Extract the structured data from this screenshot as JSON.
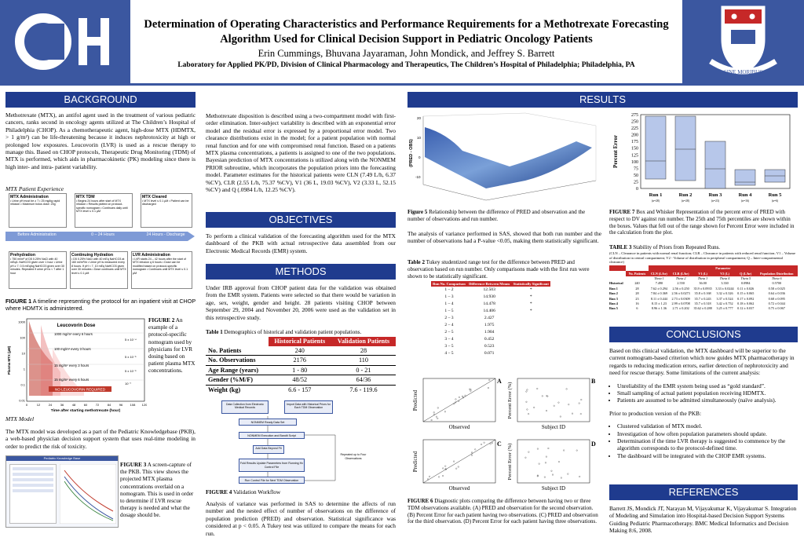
{
  "header": {
    "title_line1": "Determination of Operating Characteristics and Performance Requirements for a Methotrexate Forecasting",
    "title_line2": "Algorithm Used for Clinical Decision Support in Pediatric Oncology Patients",
    "authors": "Erin Cummings, Bhuvana Jayaraman, John Mondick, and Jeffrey S. Barrett",
    "affiliation": "Laboratory for Applied PK/PD, Division of Clinical Pharmacology and Therapeutics, The Children’s Hospital of Philadelphia; Philadelphia, PA",
    "seal_text": "SINE MORIBUS"
  },
  "sections": {
    "background": "BACKGROUND",
    "objectives": "OBJECTIVES",
    "methods": "METHODS",
    "results": "RESULTS",
    "conclusions": "CONCLUSIONS",
    "references": "REFERENCES"
  },
  "background": {
    "para1": "Methotrexate (MTX), an antifol agent used in the treatment of various pediatric cancers, ranks second in oncology agents utilized at The Children’s Hospital of Philadelphia (CHOP). As a chemotherapeutic agent, high-dose MTX (HDMTX, > 1 g/m²) can be life-threatening because it induces nephrotoxicity at high or prolonged low exposures. Leucovorin (LVR) is used as a rescue therapy to manage this. Based on CHOP protocols, Therapeutic Drug Monitoring (TDM) of MTX is performed, which aids in pharmacokinetic (PK) modeling since there is high inter- and intra- patient variability.",
    "mtx_patient_experience": "MTX Patient Experience",
    "timeline": {
      "box1_title": "MTX Administration",
      "box1_items": "• Urine pH must be ≥ 7 • 25 mg/kg rapid infusion • Maximum bolus dose: 20g",
      "box2_title": "MTX TDM",
      "box2_items": "• Begins 24 hours after start of MTX infusion • Results plotted on protocol-specific nomogram • Continues daily until MTX level ≤ 0.1 μM",
      "box3_title": "MTX Cleared",
      "box3_items": "• MTX level ≤ 0.1 μM • Patient can be discharged",
      "arrow1": "Before Administration",
      "arrow2": "0 – 24 Hours",
      "arrow3": "24 Hours - Discharge",
      "box4_title": "Prehydration",
      "box4_items": "• 750 ml/m² of D5 0.25% NaCl with 40 mEq/L NaHCO3 given over 1 hour • Urine pH ≥ 7, 0.5 mEq/kg NaHCO3 given over 30 minutes. Repeated if urine pH is < 7 after 1 hour",
      "box5_title": "Continuing Hydration",
      "box5_items": "• D5 0.25% NaCl with 40 mEq NaHCO3 at 160 ml/m²/hr • Urine pH is measured every 8 hours. If pH < 7, 10 mEq NaHCO3 given over 30 minutes • Dose continues until MTX level ≤ 0.1 μM",
      "box6_title": "LVR Administration",
      "box6_items": "• LVR starts 24 – 42 hours after the start of MTX infusion q 6 hours • Dose can be modified based on protocol-specific nomogram • Continues until MTX level ≤ 0.1 μM"
    },
    "fig1_caption": "A timeline representing the protocol for an inpatient visit at CHOP where HDMTX is administered.",
    "fig1_label": "FIGURE 1",
    "fig2_label": "FIGURE 2",
    "fig2_caption": "An example of a protocol-specific nomogram used by physicians for LVR dosing based on patient plasma MTX concentrations.",
    "mtx_model": "MTX Model",
    "para2": "The MTX model was developed as a part of the Pediatric Knowledgebase (PKB), a web-based physician decision support system that uses real-time modeling in order to predict the risk of toxicity.",
    "fig3_label": "FIGURE 3",
    "fig3_caption": "A screen-capture of the PKB. This view shows the projected MTX plasma concentrations overlaid on a nomogram. This is used in order to determine if LVR rescue therapy is needed and what the dosage should be.",
    "pkb_title": "Pediatric Knowledge Base"
  },
  "nomogram": {
    "title": "Leucovorin Dose",
    "ylabel": "Plasma MTX (µM)",
    "xlabel": "Time after starting methotrexate (hour)",
    "yticks": [
      "1000",
      "100",
      "10",
      "1",
      "0.1",
      "0.01"
    ],
    "xticks": [
      "0",
      "12",
      "24",
      "36",
      "48",
      "60",
      "72",
      "84",
      "96",
      "108",
      "120"
    ],
    "zone1": "1000 mg/m² every 6 hours",
    "zone2": "100 mg/m² every 3 hours",
    "zone3": "15 mg/m² every 3 hours",
    "zone4": "15 mg/m² every 6 hours",
    "no_lvr": "NO LEUCOVORIN REQUIRED",
    "thresh1": "5 x 10⁻⁴",
    "thresh2": "5 x 10⁻⁵",
    "thresh3": "5 x 10⁻⁶",
    "thresh4": "10⁻⁷"
  },
  "middle": {
    "para1": "Methotrexate disposition is described using a two-compartment model with first-order elimination. Inter-subject variability is described with an exponential error model and the residual error is expressed by a proportional error model. Two clearance distributions exist in the model; for a patient population with normal renal function and for one with compromised renal function. Based on a patients MTX plasma concentrations, a patients is assigned to one of the two populations. Bayesian prediction of MTX concentrations is utilized along with the NONMEM PRIOR subroutine, which incorporates the population priors into the forecasting model. Parameter estimates for the historical patients were CL",
    "para1_rest": "N (7.49 L/h, 6.37 %CV), CL",
    "para1_rest2": "R (2.55 L/h, 75.37 %CV), V1 (36 L, 19.03 %CV), V2 (3.33 L, 52.15 %CV) and Q (.0984 L/h, 12.25 %CV).",
    "objectives_text": "To perform a clinical validation of the forecasting algorithm used for the MTX dashboard of the PKB with actual retrospective data assembled from our Electronic Medical Records (EMR) system.",
    "methods_text": "Under IRB approval from CHOP patient data for the validation was obtained from the EMR system. Patients were selected so that there would be variation in age, sex, weight, gender and height. 28 patients visiting CHOP between September 29, 2004 and November 20, 2006 were used as the validation set in this retrospective study.",
    "table1_label": "Table 1",
    "table1_caption": "Demographics of historical and validation patient populations.",
    "table1": {
      "col1": "Historical Patients",
      "col2": "Validation Patients",
      "rows": [
        {
          "label": "No. Patients",
          "h": "240",
          "v": "28"
        },
        {
          "label": "No. Observations",
          "h": "2176",
          "v": "110"
        },
        {
          "label": "Age Range (years)",
          "h": "1 - 80",
          "v": "0 - 21"
        },
        {
          "label": "Gender (%M/F)",
          "h": "48/52",
          "v": "64/36"
        },
        {
          "label": "Weight (kg)",
          "h": "6.6 - 157",
          "v": "7.6 - 119.6"
        }
      ]
    },
    "workflow": {
      "b1": "Data Collection from Electronic Medical Records",
      "b2": "Import Data with Historical Priors for Each TDM Observation",
      "b3": "NONMEM Ready Data Set",
      "b4": "NONMEM Execution and Bandit Script",
      "b5": "Add Data Beyond Fit",
      "b6": "Fold Results Update Parameters from Running Hx Control File",
      "b7": "Run Control File for Next TDM Observation",
      "side": "Repeated up to Four Observations"
    },
    "fig4_label": "FIGURE 4",
    "fig4_caption": "Validation Workflow",
    "para_analysis": "Analysis of variance was performed in SAS to determine the affects of run number and the nested effect of number of observations on the difference of population prediction (PRED) and observation. Statistical significance was considered at p < 0.05. A Tukey test was utilized to compare the means for each run."
  },
  "results": {
    "fig5_label": "Figure 5",
    "fig5_caption": "Relationship between the difference of PRED and observation and the number of observations and run number.",
    "surface_zlabel": "(PRED - OBS)",
    "surface_zticks": [
      "20",
      "10",
      "0",
      "-10"
    ],
    "para_anova": "The analysis of variance performed in SAS, showed that both run number and the number of observations had a P-value <0.05, making them statistically significant.",
    "table2_label": "Table 2",
    "table2_caption": "Tukey studentized range test for the difference between PRED and observation based on run number. Only comparisons made with the first run were shown to be statistically significant.",
    "tukey": {
      "h1": "Run No. Comparison",
      "h2": "Difference Between Means",
      "h3": "Statistically Significant",
      "rows": [
        {
          "c": "1 – 2",
          "d": "12.503",
          "s": "*"
        },
        {
          "c": "1 – 3",
          "d": "14.930",
          "s": "*"
        },
        {
          "c": "1 – 4",
          "d": "14.478",
          "s": "*"
        },
        {
          "c": "1 – 5",
          "d": "14.406",
          "s": "*"
        },
        {
          "c": "2 – 3",
          "d": "2.427",
          "s": ""
        },
        {
          "c": "2 – 4",
          "d": "1.975",
          "s": ""
        },
        {
          "c": "2 – 5",
          "d": "1.904",
          "s": ""
        },
        {
          "c": "3 – 4",
          "d": "0.452",
          "s": ""
        },
        {
          "c": "3 – 5",
          "d": "0.523",
          "s": ""
        },
        {
          "c": "4 – 5",
          "d": "0.071",
          "s": ""
        }
      ]
    },
    "diag": {
      "A": "A",
      "B": "B",
      "C": "C",
      "D": "D",
      "predicted": "Predicted",
      "observed": "Observed",
      "pct_error": "Percent Error (%)",
      "subject_id": "Subject ID"
    },
    "fig6_label": "FIGURE 6",
    "fig6_caption": "Diagnostic plots comparing the difference between having two or three TDM observations available. (A) PRED and observation for the second observation. (B) Percent Error for each patient having two observations. (C) PRED and observation for the third observation. (D) Percent Error for each patient having three observations.",
    "fig7_label": "FIGURE 7",
    "fig7_caption": "Box and Whisker Representation of the percent error of PRED with respect to DV against run number. The 25th and 75th percentiles are shown within the boxes. Values that fell out of the range shown for Percent Error were included in the calculation from the plot.",
    "box_ylabel": "Percent Error",
    "box_yticks": [
      "275",
      "250",
      "225",
      "200",
      "175",
      "150",
      "125",
      "100",
      "75",
      "50",
      "25",
      "0"
    ],
    "box_runs": [
      "Run 1",
      "Run 2",
      "Run 3",
      "Run 4",
      "Run 5"
    ],
    "box_counts": [
      "(n=28)",
      "(n=28)",
      "(n=23)",
      "(n=16)",
      "(n=6)"
    ],
    "table3_label": "TABLE 3",
    "table3_caption": "Stability of Priors from Repeated Runs.",
    "table3_note": "(CLN – Clearance in patients with normal renal function; CLR – Clearance in patients with reduced renal function; V1 – Volume of distribution in central compartment; V2 - Volume of distribution in peripheral compartment; Q – Inter-compartmental clearance)",
    "pop": {
      "group": "Parameter",
      "cols": [
        "No. Patients",
        "CLN (L/hr)",
        "CLR (L/hr)",
        "V1 (L)",
        "V2 (L)",
        "Q (L/hr)",
        "Population Distribution"
      ],
      "thetas": [
        "",
        "Theta 1",
        "Theta 2",
        "Theta 3",
        "Theta 4",
        "Theta 5",
        "Theta 6"
      ],
      "rows": [
        {
          "r": "Historical",
          "v": [
            "240",
            "7.490",
            "2.550",
            "36.00",
            "3.330",
            "0.0984",
            "0.5700"
          ]
        },
        {
          "r": "Run 1",
          "v": [
            "28",
            "7.62 ± 0.294",
            "2.56 ± 0.250",
            "35.9 ± 0.0935",
            "3.33 ± 0.0244",
            "0.11 ± 0.026",
            "0.58 ± 0.025"
          ]
        },
        {
          "r": "Run 2",
          "v": [
            "28",
            "7.84 ± 0.369",
            "2.56 ± 0.0273",
            "35.8 ± 0.168",
            "3.32 ± 0.326",
            "0.15 ± 0.065",
            "0.64 ± 0.036"
          ]
        },
        {
          "r": "Run 3",
          "v": [
            "23",
            "8.11 ± 0.444",
            "2.73 ± 0.0309",
            "35.7 ± 0.243",
            "3.37 ± 0.524",
            "0.17 ± 0.092",
            "0.68 ± 0.095"
          ]
        },
        {
          "r": "Run 4",
          "v": [
            "16",
            "8.15 ± 1.23",
            "2.99 ± 0.0708",
            "35.7 ± 0.318",
            "3.42 ± 0.752",
            "0.18 ± 0.062",
            "0.72 ± 0.044"
          ]
        },
        {
          "r": "Run 5",
          "v": [
            "6",
            "8.96 ± 1.36",
            "2.71 ± 0.202",
            "35.62 ± 0.288",
            "3.25 ± 0.777",
            "0.12 ± 0.037",
            "0.75 ± 0.067"
          ]
        }
      ]
    },
    "concl_p1": "Based on this clinical validation, the MTX dashboard will be superior to the current nomogram-based criterion which now guides MTX pharmacotherapy in regards to reducing medication errors, earlier detection of nephrotoxicity and need for rescue therapy. Some limitations of the current analysis:",
    "concl_b1": "Unreliability of the EMR system being used as “gold standard”.",
    "concl_b2": "Small sampling of actual patient population receiving HDMTX.",
    "concl_b3": "Patients are assumed to be admitted simultaneously (naïve analysis).",
    "concl_p2": "Prior to production version of the PKB:",
    "concl_b4": "Clustered validation of MTX model.",
    "concl_b5": "Investigation of how often population parameters should update.",
    "concl_b6": "Determination if the time LVR therapy is suggested to commence by the algorithm corresponds to the protocol-defined time.",
    "concl_b7": "The dashboard will be integrated with the CHOP EMR systems.",
    "reference": "Barrett JS, Mondick JT, Narayan M, Vijayakumar K, Vijayakumar S. Integration of Modeling and Simulation into Hospital-based Decision Support Systems Guiding Pediatric Pharmacotherapy. BMC Medical Informatics and Decision Making 8:6, 2008."
  },
  "colors": {
    "brand_blue": "#3b57a0",
    "bar_blue": "#1f3b8e",
    "table_red": "#c62828",
    "nomogram_red": "#c0392b"
  }
}
